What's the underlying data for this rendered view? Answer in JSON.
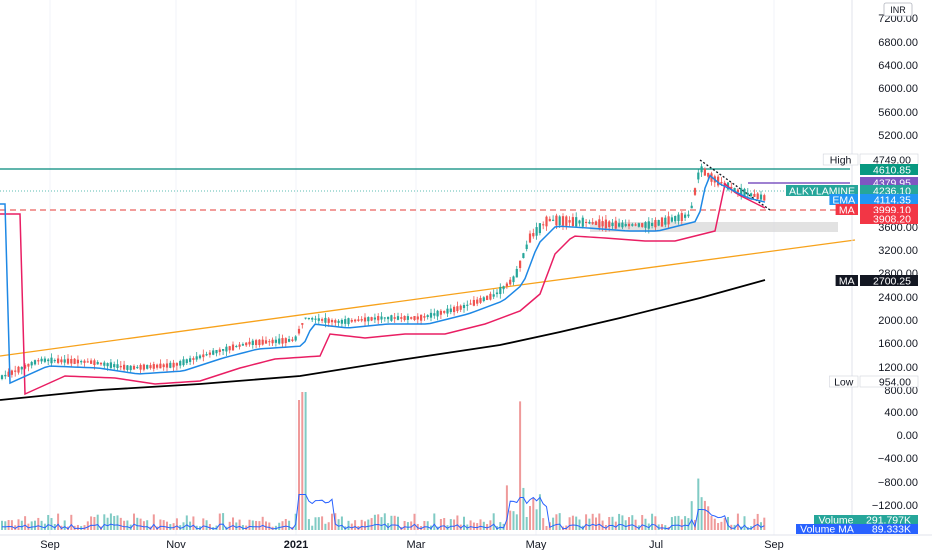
{
  "chart_data": {
    "type": "candlestick",
    "symbol": "ALKYLAMINE",
    "currency": "INR",
    "x_ticks": [
      "Sep",
      "Nov",
      "2021",
      "Mar",
      "May",
      "Jul",
      "Sep"
    ],
    "y_ticks": [
      "7200.00",
      "6800.00",
      "6400.00",
      "6000.00",
      "5600.00",
      "5200.00",
      "3600.00",
      "3200.00",
      "2800.00",
      "2400.00",
      "2000.00",
      "1600.00",
      "1200.00",
      "800.00",
      "400.00",
      "0.00",
      "−400.00",
      "−800.00",
      "−1200.00"
    ],
    "price_labels": [
      {
        "name": "High",
        "value": "4749.00",
        "bg": "#ffffff",
        "fg": "#131722",
        "tag": "High"
      },
      {
        "name": "level",
        "value": "4610.85",
        "bg": "#089981",
        "fg": "#ffffff",
        "tag": ""
      },
      {
        "name": "level",
        "value": "4379.95",
        "bg": "#7e57c2",
        "fg": "#ffffff",
        "tag": ""
      },
      {
        "name": "ALKYLAMINE",
        "value": "4236.10",
        "bg": "#26a69a",
        "fg": "#ffffff",
        "tag": "ALKYLAMINE"
      },
      {
        "name": "EMA",
        "value": "4114.35",
        "bg": "#2196f3",
        "fg": "#ffffff",
        "tag": "EMA"
      },
      {
        "name": "MA",
        "value": "3999.10",
        "bg": "#f23645",
        "fg": "#ffffff",
        "tag": "MA"
      },
      {
        "name": "level",
        "value": "3908.20",
        "bg": "#f23645",
        "fg": "#ffffff",
        "tag": ""
      },
      {
        "name": "MA",
        "value": "2700.25",
        "bg": "#131722",
        "fg": "#ffffff",
        "tag": "MA"
      },
      {
        "name": "Low",
        "value": "954.00",
        "bg": "#ffffff",
        "fg": "#131722",
        "tag": "Low"
      }
    ],
    "volume_labels": [
      {
        "tag": "Volume",
        "value": "291.797K",
        "bg": "#26a69a"
      },
      {
        "tag": "Volume MA",
        "value": "89.333K",
        "bg": "#2962ff"
      }
    ],
    "colors": {
      "up": "#26a69a",
      "down": "#ef5350",
      "ema": "#2196f3",
      "ma": "#e91e63",
      "ma_long": "#000000",
      "trend": "#f7a21b",
      "resistance": "#00897b"
    }
  }
}
